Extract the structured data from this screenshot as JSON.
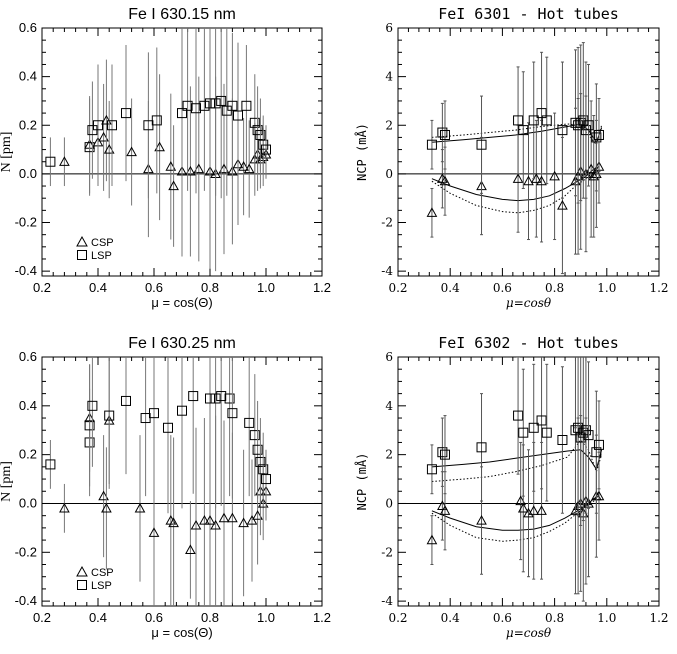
{
  "chart_data": [
    {
      "type": "scatter",
      "title": "Fe I 630.15 nm",
      "xlabel": "μ = cos(Θ)",
      "ylabel": "N [pm]",
      "xlim": [
        0.2,
        1.2
      ],
      "ylim": [
        -0.42,
        0.6
      ],
      "xticks": [
        "0.2",
        "0.4",
        "0.6",
        "0.8",
        "1.0",
        "1.2"
      ],
      "yticks": [
        "-0.4",
        "-0.2",
        "0.0",
        "0.2",
        "0.4",
        "0.6"
      ],
      "legend": [
        {
          "marker": "triangle",
          "label": "CSP"
        },
        {
          "marker": "square",
          "label": "LSP"
        }
      ],
      "legend_position": "bottom-left",
      "series": [
        {
          "name": "CSP",
          "marker": "triangle",
          "x": [
            0.28,
            0.37,
            0.4,
            0.42,
            0.43,
            0.44,
            0.52,
            0.58,
            0.62,
            0.66,
            0.67,
            0.7,
            0.73,
            0.76,
            0.8,
            0.82,
            0.85,
            0.88,
            0.9,
            0.92,
            0.94,
            0.96,
            0.97,
            0.98,
            0.99,
            1.0
          ],
          "y": [
            0.05,
            0.12,
            0.13,
            0.15,
            0.22,
            0.1,
            0.09,
            0.02,
            0.11,
            0.03,
            -0.05,
            0.01,
            0.01,
            0.02,
            0.01,
            0.0,
            0.02,
            0.01,
            0.04,
            0.03,
            0.02,
            0.06,
            0.08,
            0.06,
            0.07,
            0.08
          ],
          "err": [
            0.1,
            0.2,
            0.18,
            0.22,
            0.25,
            0.2,
            0.22,
            0.28,
            0.3,
            0.3,
            0.25,
            0.35,
            0.35,
            0.38,
            0.4,
            0.4,
            0.35,
            0.3,
            0.25,
            0.2,
            0.2,
            0.15,
            0.15,
            0.12,
            0.12,
            0.1
          ]
        },
        {
          "name": "LSP",
          "marker": "square",
          "x": [
            0.23,
            0.37,
            0.38,
            0.4,
            0.45,
            0.5,
            0.58,
            0.61,
            0.7,
            0.72,
            0.75,
            0.78,
            0.8,
            0.82,
            0.84,
            0.86,
            0.88,
            0.9,
            0.93,
            0.96,
            0.97,
            0.98,
            0.99,
            1.0
          ],
          "y": [
            0.05,
            0.11,
            0.18,
            0.2,
            0.2,
            0.25,
            0.2,
            0.22,
            0.25,
            0.28,
            0.27,
            0.28,
            0.29,
            0.29,
            0.3,
            0.26,
            0.28,
            0.24,
            0.28,
            0.21,
            0.18,
            0.16,
            0.12,
            0.1
          ],
          "err": [
            0.1,
            0.2,
            0.2,
            0.25,
            0.25,
            0.28,
            0.3,
            0.3,
            0.35,
            0.35,
            0.35,
            0.35,
            0.38,
            0.38,
            0.4,
            0.35,
            0.3,
            0.3,
            0.25,
            0.2,
            0.18,
            0.15,
            0.12,
            0.1
          ]
        }
      ]
    },
    {
      "type": "scatter",
      "title": "FeI 6301 - Hot tubes",
      "xlabel": "μ=cosθ",
      "ylabel": "NCP (mÅ)",
      "xlim": [
        0.2,
        1.2
      ],
      "ylim": [
        -4.2,
        6
      ],
      "xticks": [
        "0.2",
        "0.4",
        "0.6",
        "0.8",
        "1.0",
        "1.2"
      ],
      "yticks": [
        "-4",
        "-2",
        "0",
        "2",
        "4",
        "6"
      ],
      "series": [
        {
          "name": "triangles",
          "marker": "triangle",
          "x": [
            0.33,
            0.37,
            0.38,
            0.52,
            0.66,
            0.7,
            0.73,
            0.75,
            0.8,
            0.83,
            0.88,
            0.89,
            0.9,
            0.92,
            0.94,
            0.95,
            0.96,
            0.97
          ],
          "y": [
            -1.6,
            -0.2,
            -0.3,
            -0.5,
            -0.2,
            -0.3,
            -0.2,
            -0.3,
            -0.1,
            -1.3,
            -0.3,
            -0.1,
            0.1,
            0.0,
            0.2,
            -0.1,
            0.0,
            0.3
          ],
          "err": [
            1.0,
            1.2,
            1.4,
            2.0,
            2.2,
            2.4,
            2.4,
            2.5,
            2.6,
            2.8,
            3.0,
            3.2,
            3.2,
            3.2,
            2.8,
            2.5,
            2.2,
            1.5
          ]
        },
        {
          "name": "squares",
          "marker": "square",
          "x": [
            0.33,
            0.37,
            0.38,
            0.52,
            0.66,
            0.68,
            0.72,
            0.75,
            0.77,
            0.83,
            0.88,
            0.89,
            0.9,
            0.91,
            0.92,
            0.93,
            0.96,
            0.97
          ],
          "y": [
            1.2,
            1.7,
            1.6,
            1.2,
            2.2,
            1.8,
            2.2,
            2.5,
            2.2,
            1.8,
            2.1,
            2.0,
            2.1,
            2.2,
            1.8,
            2.0,
            1.5,
            1.6
          ],
          "err": [
            1.0,
            1.2,
            1.4,
            2.0,
            2.2,
            2.4,
            2.4,
            2.5,
            2.6,
            2.8,
            3.0,
            3.2,
            3.2,
            3.2,
            2.8,
            2.5,
            2.2,
            1.5
          ]
        }
      ],
      "models": [
        {
          "style": "solid",
          "x": [
            0.33,
            0.45,
            0.55,
            0.65,
            0.75,
            0.85,
            0.9,
            0.93,
            0.96,
            0.98
          ],
          "y": [
            1.3,
            1.4,
            1.5,
            1.6,
            1.75,
            1.95,
            2.05,
            1.8,
            1.3,
            1.9
          ]
        },
        {
          "style": "dotted",
          "x": [
            0.33,
            0.45,
            0.55,
            0.65,
            0.75,
            0.85,
            0.9,
            0.93,
            0.96,
            0.98
          ],
          "y": [
            1.5,
            1.6,
            1.7,
            1.8,
            1.95,
            2.05,
            2.0,
            1.6,
            1.2,
            2.0
          ]
        },
        {
          "style": "solid",
          "x": [
            0.33,
            0.4,
            0.5,
            0.6,
            0.66,
            0.72,
            0.78,
            0.84,
            0.88,
            0.92,
            0.95,
            0.97
          ],
          "y": [
            -0.2,
            -0.5,
            -0.85,
            -1.05,
            -1.1,
            -1.05,
            -0.9,
            -0.6,
            -0.35,
            -0.1,
            0.2,
            0.3
          ]
        },
        {
          "style": "dotted",
          "x": [
            0.33,
            0.4,
            0.5,
            0.6,
            0.66,
            0.72,
            0.78,
            0.84,
            0.88,
            0.92,
            0.95,
            0.97
          ],
          "y": [
            -0.3,
            -0.8,
            -1.3,
            -1.55,
            -1.6,
            -1.5,
            -1.3,
            -0.9,
            -0.5,
            -0.2,
            0.1,
            0.3
          ]
        }
      ]
    },
    {
      "type": "scatter",
      "title": "Fe I 630.25 nm",
      "xlabel": "μ = cos(Θ)",
      "ylabel": "N [pm]",
      "xlim": [
        0.2,
        1.2
      ],
      "ylim": [
        -0.42,
        0.6
      ],
      "xticks": [
        "0.2",
        "0.4",
        "0.6",
        "0.8",
        "1.0",
        "1.2"
      ],
      "yticks": [
        "-0.4",
        "-0.2",
        "0.0",
        "0.2",
        "0.4",
        "0.6"
      ],
      "legend": [
        {
          "marker": "triangle",
          "label": "CSP"
        },
        {
          "marker": "square",
          "label": "LSP"
        }
      ],
      "legend_position": "bottom-left",
      "series": [
        {
          "name": "CSP",
          "marker": "triangle",
          "x": [
            0.28,
            0.37,
            0.42,
            0.43,
            0.44,
            0.55,
            0.6,
            0.66,
            0.67,
            0.73,
            0.75,
            0.78,
            0.8,
            0.82,
            0.85,
            0.88,
            0.92,
            0.95,
            0.97,
            0.98,
            0.99,
            1.0
          ],
          "y": [
            -0.02,
            0.35,
            0.03,
            -0.02,
            0.34,
            -0.02,
            -0.12,
            -0.07,
            -0.08,
            -0.19,
            -0.09,
            -0.07,
            -0.07,
            -0.09,
            -0.06,
            -0.06,
            -0.08,
            -0.07,
            -0.05,
            0.05,
            0.0,
            0.05
          ],
          "err": [
            0.1,
            0.22,
            0.25,
            0.25,
            0.28,
            0.3,
            0.32,
            0.35,
            0.35,
            0.2,
            0.4,
            0.42,
            0.45,
            0.45,
            0.4,
            0.35,
            0.3,
            0.25,
            0.2,
            0.18,
            0.15,
            0.12
          ]
        },
        {
          "name": "LSP",
          "marker": "square",
          "x": [
            0.23,
            0.37,
            0.37,
            0.38,
            0.44,
            0.5,
            0.57,
            0.6,
            0.65,
            0.7,
            0.74,
            0.8,
            0.82,
            0.84,
            0.87,
            0.88,
            0.94,
            0.96,
            0.97,
            0.98,
            0.99,
            1.0
          ],
          "y": [
            0.16,
            0.25,
            0.32,
            0.4,
            0.36,
            0.42,
            0.35,
            0.37,
            0.31,
            0.38,
            0.44,
            0.43,
            0.43,
            0.44,
            0.43,
            0.37,
            0.33,
            0.28,
            0.22,
            0.17,
            0.14,
            0.1
          ],
          "err": [
            0.1,
            0.22,
            0.25,
            0.25,
            0.28,
            0.3,
            0.32,
            0.35,
            0.35,
            0.4,
            0.4,
            0.42,
            0.45,
            0.45,
            0.4,
            0.35,
            0.3,
            0.25,
            0.2,
            0.18,
            0.15,
            0.12
          ]
        }
      ]
    },
    {
      "type": "scatter",
      "title": "FeI 6302 - Hot tubes",
      "xlabel": "μ=cosθ",
      "ylabel": "NCP (mÅ)",
      "xlim": [
        0.2,
        1.2
      ],
      "ylim": [
        -4.2,
        6
      ],
      "xticks": [
        "0.2",
        "0.4",
        "0.6",
        "0.8",
        "1.0",
        "1.2"
      ],
      "yticks": [
        "-4",
        "-2",
        "0",
        "2",
        "4",
        "6"
      ],
      "series": [
        {
          "name": "triangles",
          "marker": "triangle",
          "x": [
            0.33,
            0.37,
            0.38,
            0.52,
            0.67,
            0.68,
            0.7,
            0.72,
            0.75,
            0.88,
            0.89,
            0.9,
            0.91,
            0.92,
            0.93,
            0.96,
            0.97
          ],
          "y": [
            -1.5,
            -0.1,
            -0.3,
            -0.7,
            0.1,
            -0.2,
            -0.4,
            -0.3,
            -0.3,
            -0.3,
            -0.1,
            0.0,
            -0.4,
            0.1,
            0.0,
            0.3,
            0.3
          ],
          "err": [
            1.0,
            1.4,
            1.6,
            2.2,
            2.4,
            2.6,
            2.6,
            2.8,
            2.8,
            3.4,
            3.6,
            3.6,
            3.6,
            3.4,
            3.0,
            2.5,
            1.8
          ]
        },
        {
          "name": "squares",
          "marker": "square",
          "x": [
            0.33,
            0.37,
            0.38,
            0.52,
            0.66,
            0.68,
            0.72,
            0.75,
            0.77,
            0.83,
            0.88,
            0.89,
            0.9,
            0.91,
            0.92,
            0.93,
            0.96,
            0.97
          ],
          "y": [
            1.4,
            2.1,
            2.0,
            2.3,
            3.6,
            2.9,
            3.1,
            3.4,
            2.9,
            2.6,
            3.0,
            3.1,
            2.7,
            2.9,
            3.0,
            2.8,
            2.1,
            2.4
          ],
          "err": [
            1.0,
            1.4,
            1.6,
            2.2,
            2.4,
            2.6,
            2.6,
            2.8,
            2.8,
            3.0,
            3.4,
            3.6,
            3.6,
            3.6,
            3.4,
            3.0,
            2.5,
            1.8
          ]
        }
      ],
      "models": [
        {
          "style": "solid",
          "x": [
            0.33,
            0.45,
            0.55,
            0.65,
            0.75,
            0.85,
            0.9,
            0.93,
            0.96,
            0.98
          ],
          "y": [
            1.5,
            1.6,
            1.7,
            1.85,
            2.0,
            2.15,
            2.2,
            1.9,
            1.4,
            2.2
          ]
        },
        {
          "style": "dotted",
          "x": [
            0.33,
            0.45,
            0.55,
            0.65,
            0.75,
            0.85,
            0.9,
            0.93,
            0.96,
            0.98
          ],
          "y": [
            0.9,
            1.0,
            1.1,
            1.3,
            1.55,
            1.9,
            2.6,
            2.2,
            1.3,
            2.0
          ]
        },
        {
          "style": "solid",
          "x": [
            0.33,
            0.4,
            0.5,
            0.6,
            0.66,
            0.72,
            0.78,
            0.84,
            0.88,
            0.92,
            0.95,
            0.97
          ],
          "y": [
            -0.3,
            -0.6,
            -0.95,
            -1.1,
            -1.1,
            -1.05,
            -0.9,
            -0.6,
            -0.35,
            -0.1,
            0.2,
            0.3
          ]
        },
        {
          "style": "dotted",
          "x": [
            0.33,
            0.4,
            0.5,
            0.6,
            0.66,
            0.72,
            0.78,
            0.84,
            0.88,
            0.92,
            0.95,
            0.97
          ],
          "y": [
            -0.4,
            -0.9,
            -1.4,
            -1.55,
            -1.5,
            -1.4,
            -1.15,
            -0.8,
            -0.45,
            -0.15,
            0.1,
            0.3
          ]
        }
      ]
    }
  ]
}
